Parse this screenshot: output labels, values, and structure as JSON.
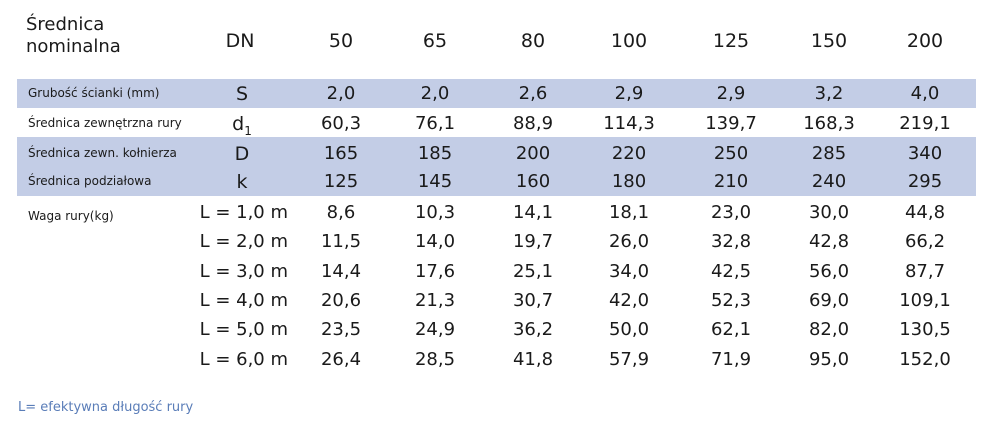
{
  "header": {
    "label": "Średnica nominalna",
    "dn_label": "DN",
    "sizes": [
      "50",
      "65",
      "80",
      "100",
      "125",
      "150",
      "200"
    ]
  },
  "rows": [
    {
      "label": "Grubość ścianki (mm)",
      "symbol": "S",
      "values": [
        "2,0",
        "2,0",
        "2,6",
        "2,9",
        "2,9",
        "3,2",
        "4,0"
      ]
    },
    {
      "label": "Średnica zewnętrzna rury",
      "symbol": "d",
      "symbol_sub": "1",
      "values": [
        "60,3",
        "76,1",
        "88,9",
        "114,3",
        "139,7",
        "168,3",
        "219,1"
      ]
    },
    {
      "label": "Średnica zewn. kołnierza",
      "symbol": "D",
      "values": [
        "165",
        "185",
        "200",
        "220",
        "250",
        "285",
        "340"
      ]
    },
    {
      "label": "Średnica podziałowa",
      "symbol": "k",
      "values": [
        "125",
        "145",
        "160",
        "180",
        "210",
        "240",
        "295"
      ]
    }
  ],
  "weight": {
    "label": "Waga rury(kg)",
    "rows": [
      {
        "length": "L = 1,0 m",
        "values": [
          "8,6",
          "10,3",
          "14,1",
          "18,1",
          "23,0",
          "30,0",
          "44,8"
        ]
      },
      {
        "length": "L = 2,0 m",
        "values": [
          "11,5",
          "14,0",
          "19,7",
          "26,0",
          "32,8",
          "42,8",
          "66,2"
        ]
      },
      {
        "length": "L = 3,0 m",
        "values": [
          "14,4",
          "17,6",
          "25,1",
          "34,0",
          "42,5",
          "56,0",
          "87,7"
        ]
      },
      {
        "length": "L = 4,0 m",
        "values": [
          "20,6",
          "21,3",
          "30,7",
          "42,0",
          "52,3",
          "69,0",
          "109,1"
        ]
      },
      {
        "length": "L = 5,0 m",
        "values": [
          "23,5",
          "24,9",
          "36,2",
          "50,0",
          "62,1",
          "82,0",
          "130,5"
        ]
      },
      {
        "length": "L = 6,0 m",
        "values": [
          "26,4",
          "28,5",
          "41,8",
          "57,9",
          "71,9",
          "95,0",
          "152,0"
        ]
      }
    ]
  },
  "footnote": "L= efektywna długość rury",
  "colors": {
    "band": "#c3cde6",
    "footnote": "#5a7db8"
  }
}
